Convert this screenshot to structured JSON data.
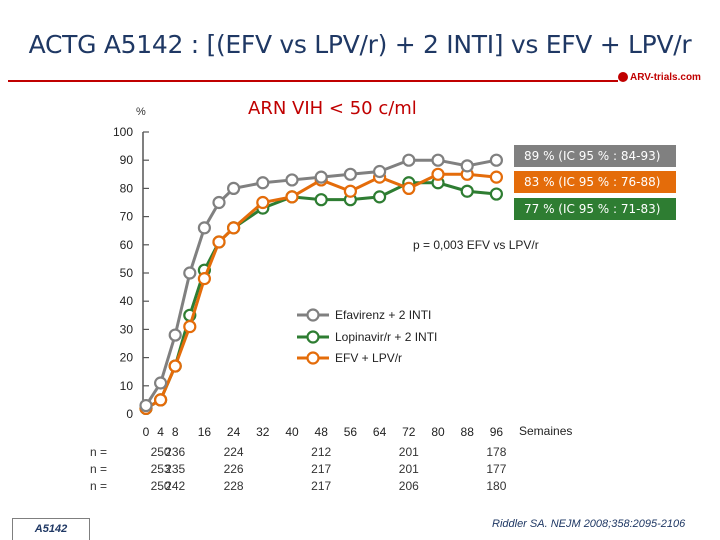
{
  "header": {
    "title": "ACTG A5142 : [(EFV vs LPV/r) + 2 INTI] vs EFV + LPV/r",
    "logo_text": "ARV-trials.com",
    "accent_color": "#c00000"
  },
  "chart_data": {
    "type": "line",
    "title": "ARN VIH < 50 c/ml",
    "ylabel": "%",
    "xlabel": "Semaines",
    "ylim": [
      0,
      100
    ],
    "yticks": [
      0,
      10,
      20,
      30,
      40,
      50,
      60,
      70,
      80,
      90,
      100
    ],
    "xticks": [
      0,
      4,
      8,
      16,
      24,
      32,
      40,
      48,
      56,
      64,
      72,
      80,
      88,
      96
    ],
    "xtick_labels": [
      "0",
      "4",
      "8",
      "16",
      "24",
      "32",
      "40",
      "48",
      "56",
      "64",
      "72",
      "80",
      "88",
      "96"
    ],
    "legend_position": "center-right",
    "series": [
      {
        "name": "Efavirenz + 2 INTI",
        "color": "#808080",
        "x": [
          0,
          4,
          8,
          12,
          16,
          20,
          24,
          32,
          40,
          48,
          56,
          64,
          72,
          80,
          88,
          96
        ],
        "values": [
          3,
          11,
          28,
          50,
          66,
          75,
          80,
          82,
          83,
          84,
          85,
          86,
          90,
          90,
          88,
          90
        ]
      },
      {
        "name": "Lopinavir/r + 2 INTI",
        "color": "#2e7d32",
        "x": [
          0,
          4,
          8,
          12,
          16,
          20,
          24,
          32,
          40,
          48,
          56,
          64,
          72,
          80,
          88,
          96
        ],
        "values": [
          2,
          5,
          17,
          35,
          51,
          61,
          66,
          73,
          77,
          76,
          76,
          77,
          82,
          82,
          79,
          78
        ]
      },
      {
        "name": "EFV + LPV/r",
        "color": "#e46c0a",
        "x": [
          0,
          4,
          8,
          12,
          16,
          20,
          24,
          32,
          40,
          48,
          56,
          64,
          72,
          80,
          88,
          96
        ],
        "values": [
          2,
          5,
          17,
          31,
          48,
          61,
          66,
          75,
          77,
          83,
          79,
          84,
          80,
          85,
          85,
          84
        ]
      }
    ],
    "annotations": {
      "ci_efv": "89 % (IC 95 % : 84-93)",
      "ci_efv_lpv": "83 % (IC 95 % : 76-88)",
      "ci_lpv": "77 % (IC 95 % : 71-83)",
      "p_value": "p = 0,003 EFV vs LPV/r"
    },
    "n_at_risk": {
      "row_label": "n =",
      "x": [
        4,
        8,
        24,
        48,
        72,
        96
      ],
      "rows": [
        [
          "250",
          "236",
          "224",
          "212",
          "201",
          "178"
        ],
        [
          "253",
          "235",
          "226",
          "217",
          "201",
          "177"
        ],
        [
          "250",
          "242",
          "228",
          "217",
          "206",
          "180"
        ]
      ]
    }
  },
  "footer": {
    "study_tag": "A5142",
    "citation": "Riddler SA. NEJM 2008;358:2095-2106"
  }
}
